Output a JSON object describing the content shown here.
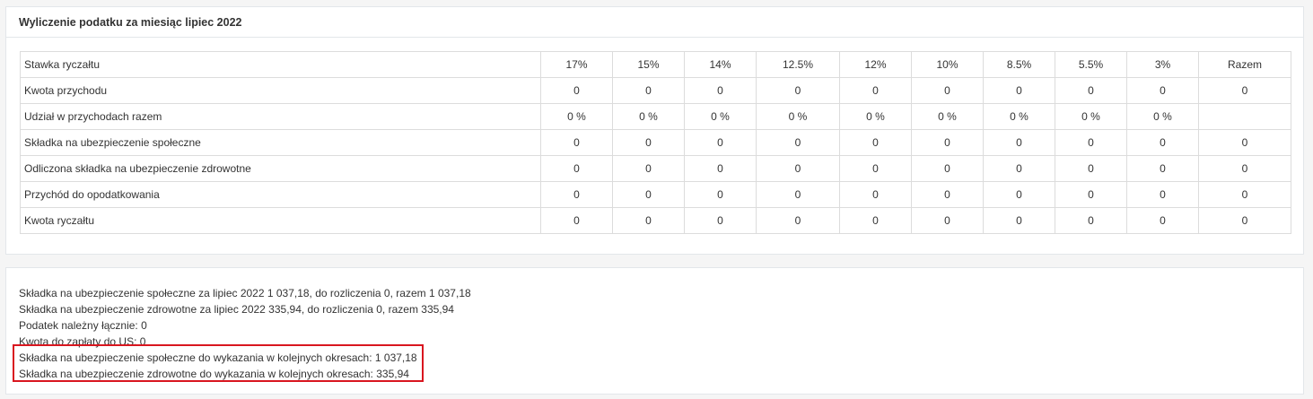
{
  "panel_title": "Wyliczenie podatku za miesiąc lipiec 2022",
  "table": {
    "header_label": "Stawka ryczałtu",
    "columns": [
      "17%",
      "15%",
      "14%",
      "12.5%",
      "12%",
      "10%",
      "8.5%",
      "5.5%",
      "3%",
      "Razem"
    ],
    "rows": [
      {
        "label": "Kwota przychodu",
        "values": [
          "0",
          "0",
          "0",
          "0",
          "0",
          "0",
          "0",
          "0",
          "0",
          "0"
        ]
      },
      {
        "label": "Udział w przychodach razem",
        "values": [
          "0 %",
          "0 %",
          "0 %",
          "0 %",
          "0 %",
          "0 %",
          "0 %",
          "0 %",
          "0 %",
          ""
        ]
      },
      {
        "label": "Składka na ubezpieczenie społeczne",
        "values": [
          "0",
          "0",
          "0",
          "0",
          "0",
          "0",
          "0",
          "0",
          "0",
          "0"
        ]
      },
      {
        "label": "Odliczona składka na ubezpieczenie zdrowotne",
        "values": [
          "0",
          "0",
          "0",
          "0",
          "0",
          "0",
          "0",
          "0",
          "0",
          "0"
        ]
      },
      {
        "label": "Przychód do opodatkowania",
        "values": [
          "0",
          "0",
          "0",
          "0",
          "0",
          "0",
          "0",
          "0",
          "0",
          "0"
        ]
      },
      {
        "label": "Kwota ryczałtu",
        "values": [
          "0",
          "0",
          "0",
          "0",
          "0",
          "0",
          "0",
          "0",
          "0",
          "0"
        ]
      }
    ]
  },
  "summary": {
    "social_line": "Składka na ubezpieczenie społeczne za lipiec 2022 1 037,18, do rozliczenia 0, razem 1 037,18",
    "health_line": "Składka na ubezpieczenie zdrowotne za lipiec 2022 335,94, do rozliczenia 0, razem 335,94",
    "tax_line": "Podatek należny łącznie: 0",
    "payment_line": "Kwota do zapłaty do US: 0",
    "social_carry_line": "Składka na ubezpieczenie społeczne do wykazania w kolejnych okresach: 1 037,18",
    "health_carry_line": "Składka na ubezpieczenie zdrowotne do wykazania w kolejnych okresach: 335,94"
  },
  "highlight_color": "#d9161f"
}
